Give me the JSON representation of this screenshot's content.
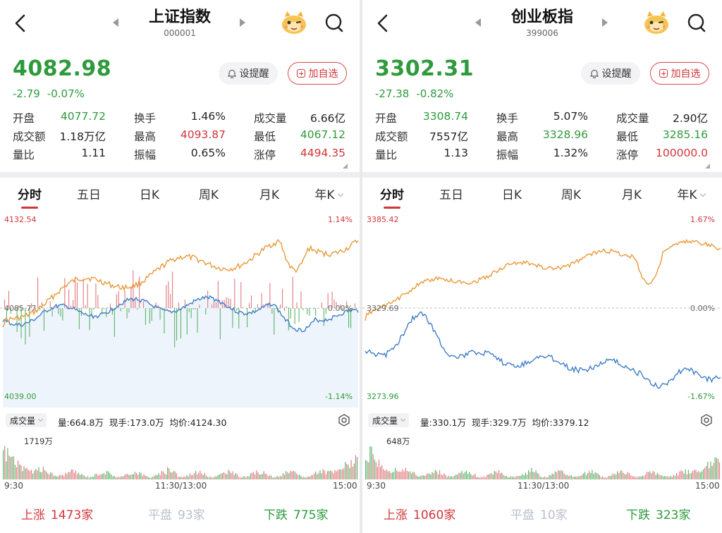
{
  "panels": [
    {
      "name": "上证指数",
      "code": "000001",
      "price": "4082.98",
      "change": "-2.79",
      "change_pct": "-0.07%",
      "buttons": {
        "remind": "设提醒",
        "add": "加自选"
      },
      "stats": [
        {
          "label": "开盘",
          "value": "4077.72",
          "color": "g"
        },
        {
          "label": "换手",
          "value": "1.46%",
          "color": "k"
        },
        {
          "label": "成交量",
          "value": "6.66亿",
          "color": "k"
        },
        {
          "label": "成交额",
          "value": "1.18万亿",
          "color": "k"
        },
        {
          "label": "最高",
          "value": "4093.87",
          "color": "r"
        },
        {
          "label": "最低",
          "value": "4067.12",
          "color": "g"
        },
        {
          "label": "量比",
          "value": "1.11",
          "color": "k"
        },
        {
          "label": "振幅",
          "value": "0.65%",
          "color": "k"
        },
        {
          "label": "涨停",
          "value": "4494.35",
          "color": "r"
        }
      ],
      "tabs": [
        "分时",
        "五日",
        "日K",
        "周K",
        "月K",
        "年K"
      ],
      "chart": {
        "y_high": "4132.54",
        "y_mid": "4085.77",
        "y_low": "4039.00",
        "pct_high": "1.14%",
        "pct_mid": "0.00%",
        "pct_low": "-1.14%"
      },
      "volume_bar": {
        "selector": "成交量",
        "vol": "量:664.8万",
        "now": "现手:173.0万",
        "avg": "均价:4124.30"
      },
      "volume_chart": {
        "max_label": "1719万"
      },
      "time_labels": [
        "9:30",
        "11:30/13:00",
        "15:00"
      ],
      "breadth": {
        "up_label": "上涨",
        "up": "1473家",
        "flat_label": "平盘",
        "flat": "93家",
        "down_label": "下跌",
        "down": "775家"
      }
    },
    {
      "name": "创业板指",
      "code": "399006",
      "price": "3302.31",
      "change": "-27.38",
      "change_pct": "-0.82%",
      "buttons": {
        "remind": "设提醒",
        "add": "加自选"
      },
      "stats": [
        {
          "label": "开盘",
          "value": "3308.74",
          "color": "g"
        },
        {
          "label": "换手",
          "value": "5.07%",
          "color": "k"
        },
        {
          "label": "成交量",
          "value": "2.90亿",
          "color": "k"
        },
        {
          "label": "成交额",
          "value": "7557亿",
          "color": "k"
        },
        {
          "label": "最高",
          "value": "3328.96",
          "color": "g"
        },
        {
          "label": "最低",
          "value": "3285.16",
          "color": "g"
        },
        {
          "label": "量比",
          "value": "1.13",
          "color": "k"
        },
        {
          "label": "振幅",
          "value": "1.32%",
          "color": "k"
        },
        {
          "label": "涨停",
          "value": "100000.0",
          "color": "r"
        }
      ],
      "tabs": [
        "分时",
        "五日",
        "日K",
        "周K",
        "月K",
        "年K"
      ],
      "chart": {
        "y_high": "3385.42",
        "y_mid": "3329.69",
        "y_low": "3273.96",
        "pct_high": "1.67%",
        "pct_mid": "0.00%",
        "pct_low": "-1.67%"
      },
      "volume_bar": {
        "selector": "成交量",
        "vol": "量:330.1万",
        "now": "现手:329.7万",
        "avg": "均价:3379.12"
      },
      "volume_chart": {
        "max_label": "648万"
      },
      "time_labels": [
        "9:30",
        "11:30/13:00",
        "15:00"
      ],
      "breadth": {
        "up_label": "上涨",
        "up": "1060家",
        "flat_label": "平盘",
        "flat": "10家",
        "down_label": "下跌",
        "down": "323家"
      }
    }
  ],
  "colors": {
    "up": "#d0363a",
    "down": "#2e9a3c",
    "price_line": "#e8993a",
    "avg_line": "#3f7ec8",
    "flat": "#b9c0cc"
  }
}
